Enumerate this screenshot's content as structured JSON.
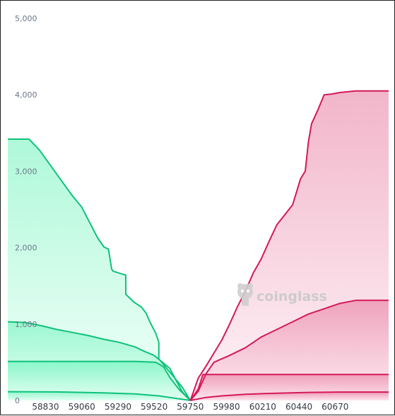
{
  "watermark": {
    "text": "coinglass",
    "icon": "coinglass-logo-icon"
  },
  "chart_data": {
    "type": "area",
    "ylim": [
      0,
      5000
    ],
    "xlim": [
      58590,
      61010
    ],
    "yticks": [
      0,
      1000,
      2000,
      3000,
      4000,
      5000
    ],
    "ytick_labels": [
      "0",
      "1,000",
      "2,000",
      "3,000",
      "4,000",
      "5,000"
    ],
    "xticks": [
      58830,
      59060,
      59290,
      59520,
      59750,
      59980,
      60210,
      60440,
      60670
    ],
    "xtick_labels": [
      "58830",
      "59060",
      "59290",
      "59520",
      "59750",
      "59980",
      "60210",
      "60440",
      "60670"
    ],
    "colors": {
      "bid_line": "#10c27a",
      "bid_fill_top": "#3ff0a6",
      "bid_fill_bottom": "#e0fff2",
      "ask_line": "#d4195a",
      "ask_fill_top": "#e0507f",
      "ask_fill_bottom": "#fde3ec"
    },
    "series": [
      {
        "side": "bid",
        "x": [
          58590,
          58725,
          58790,
          58860,
          58930,
          59000,
          59060,
          59110,
          59160,
          59200,
          59230,
          59250,
          59260,
          59340,
          59340,
          59390,
          59440,
          59470,
          59490,
          59530,
          59550,
          59550,
          59620,
          59660,
          59700,
          59750
        ],
        "y": [
          3420,
          3420,
          3280,
          3080,
          2880,
          2680,
          2530,
          2330,
          2130,
          2010,
          1980,
          1720,
          1690,
          1640,
          1390,
          1290,
          1220,
          1140,
          1040,
          880,
          760,
          540,
          420,
          260,
          110,
          0
        ]
      },
      {
        "side": "bid",
        "x": [
          58590,
          58700,
          58800,
          58900,
          59000,
          59100,
          59200,
          59300,
          59400,
          59450,
          59520,
          59560,
          59600,
          59640,
          59700,
          59750
        ],
        "y": [
          1030,
          1020,
          980,
          930,
          890,
          850,
          800,
          760,
          700,
          650,
          590,
          520,
          420,
          320,
          170,
          0
        ]
      },
      {
        "side": "bid",
        "x": [
          58590,
          59400,
          59530,
          59580,
          59620,
          59680,
          59750
        ],
        "y": [
          510,
          510,
          500,
          440,
          300,
          140,
          0
        ]
      },
      {
        "side": "bid",
        "x": [
          58590,
          58900,
          59200,
          59400,
          59550,
          59650,
          59750
        ],
        "y": [
          115,
          112,
          100,
          85,
          60,
          30,
          0
        ]
      },
      {
        "side": "ask",
        "x": [
          59750,
          59800,
          59850,
          59900,
          59950,
          60000,
          60050,
          60100,
          60150,
          60200,
          60250,
          60300,
          60350,
          60400,
          60450,
          60480,
          60500,
          60520,
          60560,
          60600,
          60650,
          60700,
          60750,
          60800,
          61010
        ],
        "y": [
          0,
          290,
          450,
          620,
          790,
          1000,
          1230,
          1430,
          1670,
          1850,
          2080,
          2300,
          2430,
          2560,
          2900,
          3000,
          3380,
          3620,
          3800,
          4000,
          4010,
          4030,
          4040,
          4050,
          4050
        ]
      },
      {
        "side": "ask",
        "x": [
          59750,
          59800,
          59850,
          59900,
          60000,
          60100,
          60200,
          60300,
          60400,
          60500,
          60600,
          60700,
          60800,
          61010
        ],
        "y": [
          0,
          120,
          350,
          500,
          590,
          690,
          830,
          930,
          1030,
          1130,
          1200,
          1270,
          1310,
          1310
        ]
      },
      {
        "side": "ask",
        "x": [
          59750,
          59800,
          59830,
          61010
        ],
        "y": [
          0,
          150,
          340,
          340
        ]
      },
      {
        "side": "ask",
        "x": [
          59750,
          59850,
          59950,
          60100,
          60300,
          60500,
          60700,
          61010
        ],
        "y": [
          0,
          40,
          60,
          80,
          95,
          105,
          110,
          110
        ]
      }
    ]
  }
}
